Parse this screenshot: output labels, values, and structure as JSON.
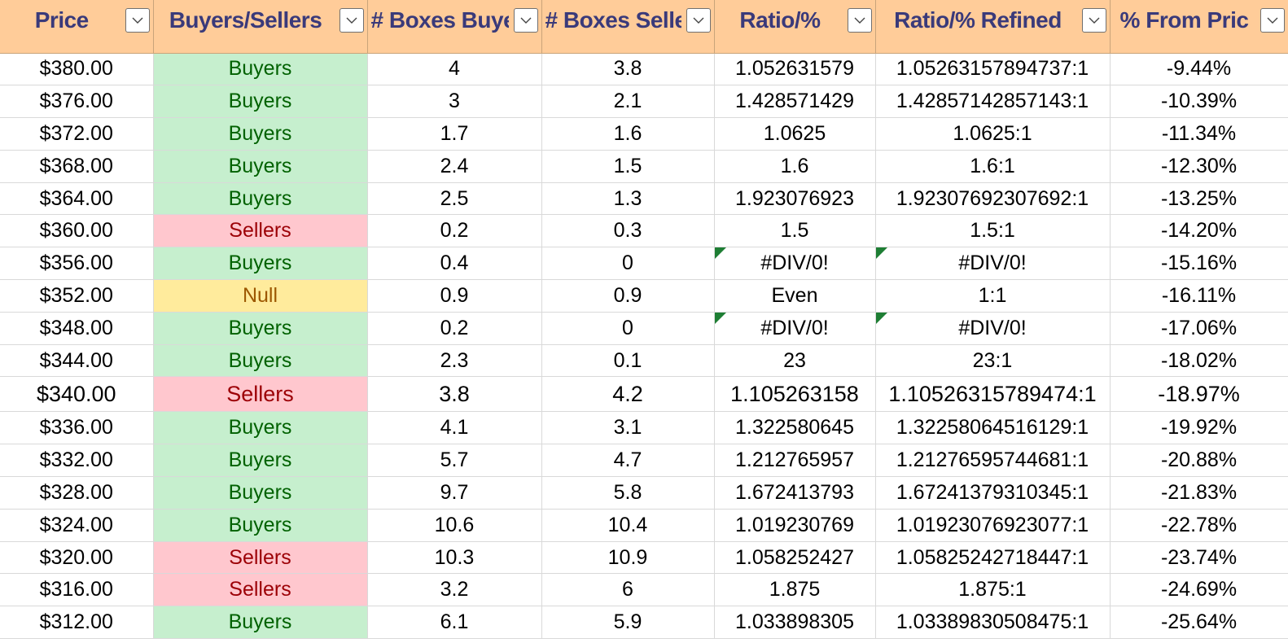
{
  "sheet": {
    "headers": [
      {
        "label": "Price",
        "filter_icon": "chevron-down-icon"
      },
      {
        "label": "Buyers/Sellers",
        "filter_icon": "chevron-down-icon"
      },
      {
        "label": "# Boxes Buye",
        "filter_icon": "chevron-down-icon"
      },
      {
        "label": "# Boxes Selle",
        "filter_icon": "chevron-down-icon"
      },
      {
        "label": "Ratio/%",
        "filter_icon": "chevron-down-icon"
      },
      {
        "label": "Ratio/% Refined",
        "filter_icon": "chevron-down-icon"
      },
      {
        "label": "% From Pric",
        "filter_icon": "chevron-down-icon"
      }
    ],
    "colors": {
      "header_bg": "#ffcc99",
      "header_text": "#3a3a7a",
      "buyers_bg": "#c6efce",
      "buyers_text": "#006100",
      "sellers_bg": "#ffc7ce",
      "sellers_text": "#9c0006",
      "null_bg": "#ffeb9c",
      "null_text": "#9c5700",
      "error_flag": "#1e7e34"
    },
    "rows": [
      {
        "price": "$380.00",
        "side": "Buyers",
        "boxes_bought": "4",
        "boxes_sold": "3.8",
        "ratio": "1.052631579",
        "ratio_refined": "1.05263157894737:1",
        "pct_from_price": "-9.44%"
      },
      {
        "price": "$376.00",
        "side": "Buyers",
        "boxes_bought": "3",
        "boxes_sold": "2.1",
        "ratio": "1.428571429",
        "ratio_refined": "1.42857142857143:1",
        "pct_from_price": "-10.39%"
      },
      {
        "price": "$372.00",
        "side": "Buyers",
        "boxes_bought": "1.7",
        "boxes_sold": "1.6",
        "ratio": "1.0625",
        "ratio_refined": "1.0625:1",
        "pct_from_price": "-11.34%"
      },
      {
        "price": "$368.00",
        "side": "Buyers",
        "boxes_bought": "2.4",
        "boxes_sold": "1.5",
        "ratio": "1.6",
        "ratio_refined": "1.6:1",
        "pct_from_price": "-12.30%"
      },
      {
        "price": "$364.00",
        "side": "Buyers",
        "boxes_bought": "2.5",
        "boxes_sold": "1.3",
        "ratio": "1.923076923",
        "ratio_refined": "1.92307692307692:1",
        "pct_from_price": "-13.25%"
      },
      {
        "price": "$360.00",
        "side": "Sellers",
        "boxes_bought": "0.2",
        "boxes_sold": "0.3",
        "ratio": "1.5",
        "ratio_refined": "1.5:1",
        "pct_from_price": "-14.20%"
      },
      {
        "price": "$356.00",
        "side": "Buyers",
        "boxes_bought": "0.4",
        "boxes_sold": "0",
        "ratio": "#DIV/0!",
        "ratio_refined": "#DIV/0!",
        "pct_from_price": "-15.16%",
        "error": true
      },
      {
        "price": "$352.00",
        "side": "Null",
        "boxes_bought": "0.9",
        "boxes_sold": "0.9",
        "ratio": "Even",
        "ratio_refined": "1:1",
        "pct_from_price": "-16.11%"
      },
      {
        "price": "$348.00",
        "side": "Buyers",
        "boxes_bought": "0.2",
        "boxes_sold": "0",
        "ratio": "#DIV/0!",
        "ratio_refined": "#DIV/0!",
        "pct_from_price": "-17.06%",
        "error": true
      },
      {
        "price": "$344.00",
        "side": "Buyers",
        "boxes_bought": "2.3",
        "boxes_sold": "0.1",
        "ratio": "23",
        "ratio_refined": "23:1",
        "pct_from_price": "-18.02%"
      },
      {
        "price": "$340.00",
        "side": "Sellers",
        "boxes_bought": "3.8",
        "boxes_sold": "4.2",
        "ratio": "1.105263158",
        "ratio_refined": "1.10526315789474:1",
        "pct_from_price": "-18.97%",
        "tall": true
      },
      {
        "price": "$336.00",
        "side": "Buyers",
        "boxes_bought": "4.1",
        "boxes_sold": "3.1",
        "ratio": "1.322580645",
        "ratio_refined": "1.32258064516129:1",
        "pct_from_price": "-19.92%"
      },
      {
        "price": "$332.00",
        "side": "Buyers",
        "boxes_bought": "5.7",
        "boxes_sold": "4.7",
        "ratio": "1.212765957",
        "ratio_refined": "1.21276595744681:1",
        "pct_from_price": "-20.88%"
      },
      {
        "price": "$328.00",
        "side": "Buyers",
        "boxes_bought": "9.7",
        "boxes_sold": "5.8",
        "ratio": "1.672413793",
        "ratio_refined": "1.67241379310345:1",
        "pct_from_price": "-21.83%"
      },
      {
        "price": "$324.00",
        "side": "Buyers",
        "boxes_bought": "10.6",
        "boxes_sold": "10.4",
        "ratio": "1.019230769",
        "ratio_refined": "1.01923076923077:1",
        "pct_from_price": "-22.78%"
      },
      {
        "price": "$320.00",
        "side": "Sellers",
        "boxes_bought": "10.3",
        "boxes_sold": "10.9",
        "ratio": "1.058252427",
        "ratio_refined": "1.05825242718447:1",
        "pct_from_price": "-23.74%"
      },
      {
        "price": "$316.00",
        "side": "Sellers",
        "boxes_bought": "3.2",
        "boxes_sold": "6",
        "ratio": "1.875",
        "ratio_refined": "1.875:1",
        "pct_from_price": "-24.69%"
      },
      {
        "price": "$312.00",
        "side": "Buyers",
        "boxes_bought": "6.1",
        "boxes_sold": "5.9",
        "ratio": "1.033898305",
        "ratio_refined": "1.03389830508475:1",
        "pct_from_price": "-25.64%"
      }
    ]
  }
}
